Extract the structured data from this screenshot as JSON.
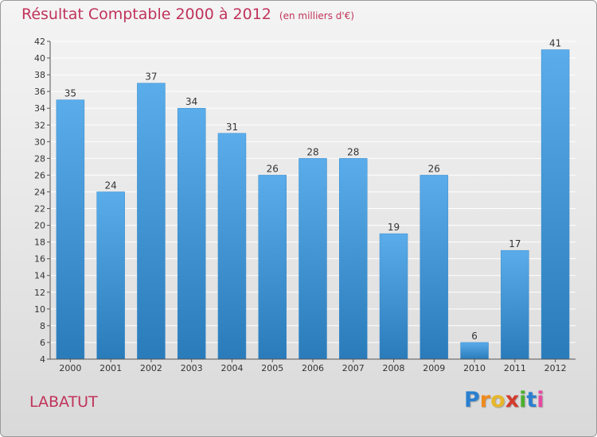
{
  "header": {
    "title": "Résultat Comptable 2000 à 2012",
    "unit": "(en milliers d'€)"
  },
  "commune": "LABATUT",
  "logo": {
    "text": "Proxiti",
    "letters": [
      "P",
      "r",
      "o",
      "x",
      "i",
      "t",
      "i"
    ],
    "colors": [
      "#2a7fd0",
      "#f08a1c",
      "#e8b62a",
      "#d33b2c",
      "#4caf2f",
      "#2a7fd0",
      "#e64aa0"
    ]
  },
  "colors": {
    "bar_light": "#5aacea",
    "bar_dark": "#2a7bba",
    "text": "#c0335b",
    "axis": "#555555",
    "grid": "#ffffff"
  },
  "chart_data": {
    "type": "bar",
    "categories": [
      "2000",
      "2001",
      "2002",
      "2003",
      "2004",
      "2005",
      "2006",
      "2007",
      "2008",
      "2009",
      "2010",
      "2011",
      "2012"
    ],
    "values": [
      35,
      24,
      37,
      34,
      31,
      26,
      28,
      28,
      19,
      26,
      6,
      17,
      41
    ],
    "ylim": [
      4,
      42
    ],
    "yticks": [
      4,
      6,
      8,
      10,
      12,
      14,
      16,
      18,
      20,
      22,
      24,
      26,
      28,
      30,
      32,
      34,
      36,
      38,
      40,
      42
    ],
    "grid": true,
    "data_labels": true
  }
}
